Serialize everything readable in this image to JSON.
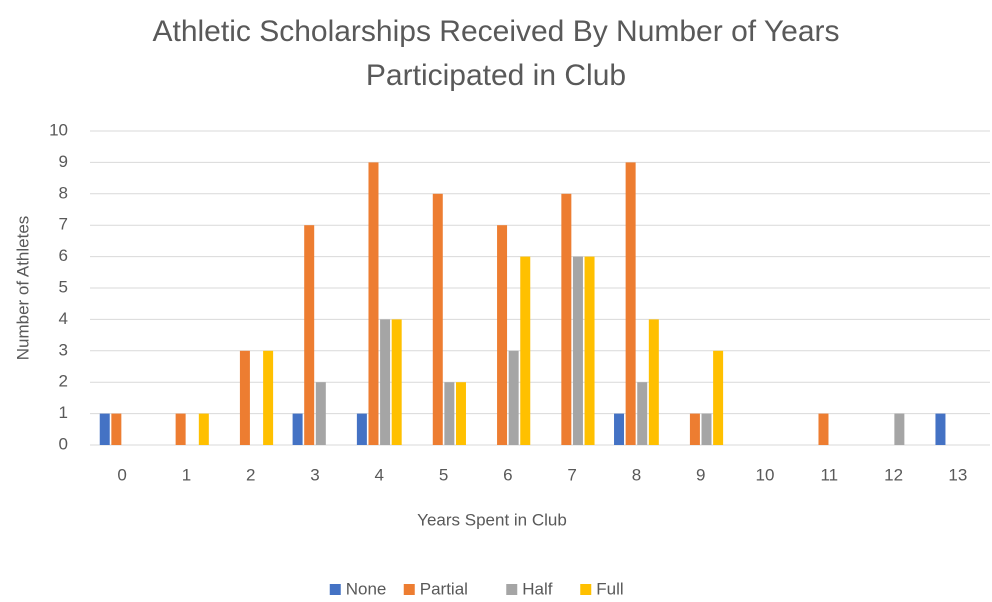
{
  "chart_data": {
    "type": "bar",
    "title": "Athletic Scholarships Received By Number of Years Participated in Club",
    "x_label": "Years Spent in Club",
    "y_label": "Number of Athletes",
    "categories": [
      "0",
      "1",
      "2",
      "3",
      "4",
      "5",
      "6",
      "7",
      "8",
      "9",
      "10",
      "11",
      "12",
      "13"
    ],
    "series": [
      {
        "name": "None",
        "color": "#4472c4",
        "values": [
          1,
          0,
          0,
          1,
          1,
          0,
          0,
          0,
          1,
          0,
          0,
          0,
          0,
          1
        ]
      },
      {
        "name": "Partial",
        "color": "#ed7d31",
        "values": [
          1,
          1,
          3,
          7,
          9,
          8,
          7,
          8,
          9,
          1,
          0,
          1,
          0,
          0
        ]
      },
      {
        "name": "Half",
        "color": "#a5a5a5",
        "values": [
          0,
          0,
          0,
          2,
          4,
          2,
          3,
          6,
          2,
          1,
          0,
          0,
          1,
          0
        ]
      },
      {
        "name": "Full",
        "color": "#ffc000",
        "values": [
          0,
          1,
          3,
          0,
          4,
          2,
          6,
          6,
          4,
          3,
          0,
          0,
          0,
          0
        ]
      }
    ],
    "ylim": [
      0,
      10
    ],
    "yticks": [
      0,
      1,
      2,
      3,
      4,
      5,
      6,
      7,
      8,
      9,
      10
    ],
    "grid": true,
    "legend": "bottom"
  }
}
